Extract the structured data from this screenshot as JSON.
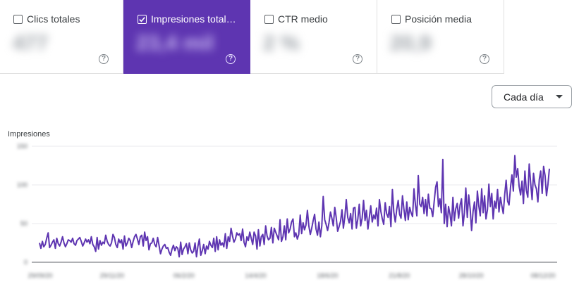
{
  "metrics": [
    {
      "label": "Clics totales",
      "value": "477",
      "checked": false
    },
    {
      "label": "Impresiones total…",
      "value": "23,4 mil",
      "checked": true
    },
    {
      "label": "CTR medio",
      "value": "2 %",
      "checked": false
    },
    {
      "label": "Posición media",
      "value": "20,9",
      "checked": false
    }
  ],
  "help_glyph": "?",
  "dropdown": {
    "selected": "Cada día"
  },
  "colors": {
    "accent": "#5e35b1",
    "line": "#5e35b1",
    "grid": "#e8eaed"
  },
  "chart_data": {
    "type": "line",
    "ylabel": "Impresiones",
    "ylim": [
      0,
      150
    ],
    "y_ticks": [
      "150",
      "100",
      "50",
      "0"
    ],
    "x_ticks": [
      "29/09/20",
      "29/11/20",
      "06/2/20",
      "14/4/20",
      "18/6/20",
      "21/8/20",
      "28/10/20",
      "08/12/20"
    ],
    "series": [
      {
        "values": [
          25,
          18,
          27,
          20,
          23,
          31,
          38,
          19,
          22,
          26,
          29,
          18,
          31,
          24,
          21,
          26,
          33,
          25,
          20,
          24,
          29,
          28,
          26,
          31,
          24,
          22,
          28,
          30,
          32,
          27,
          21,
          25,
          30,
          26,
          29,
          24,
          33,
          23,
          20,
          14,
          32,
          17,
          28,
          22,
          26,
          24,
          35,
          27,
          23,
          21,
          25,
          36,
          32,
          23,
          19,
          30,
          25,
          29,
          17,
          34,
          21,
          25,
          31,
          28,
          19,
          27,
          33,
          36,
          30,
          23,
          33,
          35,
          21,
          39,
          28,
          33,
          16,
          24,
          25,
          31,
          23,
          20,
          32,
          22,
          11,
          17,
          21,
          23,
          18,
          19,
          13,
          9,
          17,
          22,
          15,
          20,
          18,
          7,
          26,
          10,
          17,
          20,
          24,
          11,
          25,
          16,
          12,
          14,
          25,
          7,
          21,
          30,
          9,
          15,
          23,
          11,
          21,
          17,
          27,
          22,
          19,
          31,
          14,
          33,
          16,
          29,
          22,
          25,
          20,
          37,
          18,
          33,
          27,
          44,
          34,
          26,
          30,
          38,
          35,
          37,
          28,
          43,
          26,
          20,
          33,
          28,
          39,
          31,
          23,
          39,
          34,
          17,
          42,
          21,
          33,
          36,
          23,
          47,
          34,
          29,
          31,
          45,
          25,
          44,
          39,
          34,
          29,
          55,
          27,
          33,
          47,
          29,
          56,
          38,
          43,
          52,
          56,
          33,
          38,
          30,
          36,
          61,
          37,
          51,
          42,
          48,
          67,
          47,
          36,
          44,
          54,
          62,
          43,
          35,
          52,
          33,
          47,
          85,
          55,
          49,
          41,
          51,
          65,
          57,
          47,
          71,
          58,
          40,
          46,
          53,
          68,
          44,
          59,
          81,
          58,
          51,
          63,
          43,
          70,
          71,
          44,
          56,
          75,
          47,
          57,
          80,
          54,
          67,
          43,
          58,
          73,
          52,
          61,
          56,
          70,
          47,
          81,
          66,
          56,
          49,
          77,
          63,
          58,
          72,
          46,
          94,
          65,
          52,
          68,
          80,
          62,
          57,
          86,
          69,
          54,
          78,
          55,
          71,
          64,
          59,
          95,
          74,
          60,
          112,
          75,
          72,
          84,
          63,
          81,
          60,
          88,
          70,
          69,
          59,
          78,
          97,
          104,
          72,
          82,
          64,
          133,
          50,
          75,
          46,
          72,
          62,
          47,
          84,
          54,
          69,
          76,
          57,
          74,
          82,
          47,
          64,
          96,
          58,
          87,
          69,
          41,
          66,
          78,
          51,
          92,
          73,
          60,
          95,
          64,
          86,
          56,
          68,
          101,
          72,
          89,
          56,
          79,
          70,
          94,
          65,
          84,
          73,
          63,
          88,
          106,
          79,
          74,
          97,
          113,
          92,
          138,
          110,
          121,
          98,
          87,
          105,
          76,
          118,
          93,
          84,
          127,
          103,
          81,
          115,
          100,
          95,
          78,
          107,
          118,
          89,
          124,
          112,
          86,
          101,
          121
        ]
      }
    ]
  }
}
